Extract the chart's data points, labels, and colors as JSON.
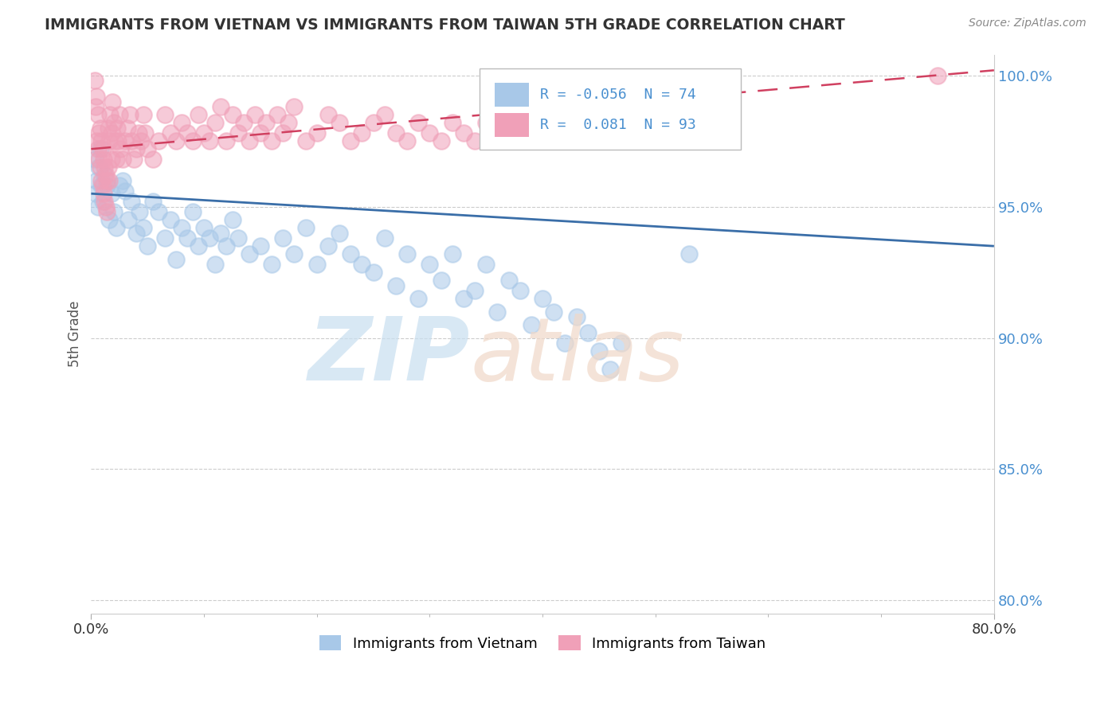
{
  "title": "IMMIGRANTS FROM VIETNAM VS IMMIGRANTS FROM TAIWAN 5TH GRADE CORRELATION CHART",
  "source": "Source: ZipAtlas.com",
  "ylabel": "5th Grade",
  "xlim": [
    0.0,
    0.8
  ],
  "ylim": [
    0.795,
    1.008
  ],
  "y_ticks": [
    0.8,
    0.85,
    0.9,
    0.95,
    1.0
  ],
  "y_tick_labels": [
    "80.0%",
    "85.0%",
    "90.0%",
    "95.0%",
    "100.0%"
  ],
  "legend_r_vietnam": "-0.056",
  "legend_n_vietnam": "74",
  "legend_r_taiwan": "0.081",
  "legend_n_taiwan": "93",
  "color_vietnam": "#a8c8e8",
  "color_taiwan": "#f0a0b8",
  "trendline_vietnam_color": "#3a6ea8",
  "trendline_taiwan_color": "#d04060",
  "vietnam_x": [
    0.003,
    0.004,
    0.005,
    0.006,
    0.007,
    0.008,
    0.009,
    0.01,
    0.012,
    0.014,
    0.016,
    0.018,
    0.02,
    0.022,
    0.025,
    0.028,
    0.03,
    0.033,
    0.036,
    0.04,
    0.043,
    0.046,
    0.05,
    0.055,
    0.06,
    0.065,
    0.07,
    0.075,
    0.08,
    0.085,
    0.09,
    0.095,
    0.1,
    0.105,
    0.11,
    0.115,
    0.12,
    0.125,
    0.13,
    0.14,
    0.15,
    0.16,
    0.17,
    0.18,
    0.19,
    0.2,
    0.21,
    0.22,
    0.23,
    0.24,
    0.25,
    0.26,
    0.27,
    0.28,
    0.29,
    0.3,
    0.31,
    0.32,
    0.33,
    0.34,
    0.35,
    0.36,
    0.37,
    0.38,
    0.39,
    0.4,
    0.41,
    0.42,
    0.43,
    0.44,
    0.45,
    0.46,
    0.47,
    0.53
  ],
  "vietnam_y": [
    0.968,
    0.955,
    0.96,
    0.95,
    0.965,
    0.972,
    0.958,
    0.952,
    0.962,
    0.958,
    0.945,
    0.955,
    0.948,
    0.942,
    0.958,
    0.96,
    0.956,
    0.945,
    0.952,
    0.94,
    0.948,
    0.942,
    0.935,
    0.952,
    0.948,
    0.938,
    0.945,
    0.93,
    0.942,
    0.938,
    0.948,
    0.935,
    0.942,
    0.938,
    0.928,
    0.94,
    0.935,
    0.945,
    0.938,
    0.932,
    0.935,
    0.928,
    0.938,
    0.932,
    0.942,
    0.928,
    0.935,
    0.94,
    0.932,
    0.928,
    0.925,
    0.938,
    0.92,
    0.932,
    0.915,
    0.928,
    0.922,
    0.932,
    0.915,
    0.918,
    0.928,
    0.91,
    0.922,
    0.918,
    0.905,
    0.915,
    0.91,
    0.898,
    0.908,
    0.902,
    0.895,
    0.888,
    0.898,
    0.932
  ],
  "taiwan_x": [
    0.003,
    0.004,
    0.005,
    0.005,
    0.006,
    0.006,
    0.007,
    0.007,
    0.008,
    0.008,
    0.009,
    0.009,
    0.01,
    0.01,
    0.011,
    0.011,
    0.012,
    0.012,
    0.013,
    0.013,
    0.014,
    0.014,
    0.015,
    0.015,
    0.016,
    0.016,
    0.017,
    0.018,
    0.018,
    0.019,
    0.02,
    0.021,
    0.022,
    0.023,
    0.024,
    0.025,
    0.026,
    0.028,
    0.03,
    0.032,
    0.034,
    0.036,
    0.038,
    0.04,
    0.042,
    0.044,
    0.046,
    0.048,
    0.05,
    0.055,
    0.06,
    0.065,
    0.07,
    0.075,
    0.08,
    0.085,
    0.09,
    0.095,
    0.1,
    0.105,
    0.11,
    0.115,
    0.12,
    0.125,
    0.13,
    0.135,
    0.14,
    0.145,
    0.15,
    0.155,
    0.16,
    0.165,
    0.17,
    0.175,
    0.18,
    0.19,
    0.2,
    0.21,
    0.22,
    0.23,
    0.24,
    0.25,
    0.26,
    0.27,
    0.28,
    0.29,
    0.3,
    0.31,
    0.32,
    0.33,
    0.34,
    0.35,
    0.75
  ],
  "taiwan_y": [
    0.998,
    0.988,
    0.992,
    0.975,
    0.985,
    0.972,
    0.978,
    0.968,
    0.98,
    0.965,
    0.975,
    0.96,
    0.972,
    0.958,
    0.968,
    0.955,
    0.965,
    0.952,
    0.962,
    0.95,
    0.96,
    0.948,
    0.98,
    0.965,
    0.975,
    0.96,
    0.985,
    0.978,
    0.968,
    0.99,
    0.982,
    0.975,
    0.968,
    0.98,
    0.975,
    0.985,
    0.972,
    0.968,
    0.975,
    0.98,
    0.985,
    0.975,
    0.968,
    0.972,
    0.978,
    0.975,
    0.985,
    0.978,
    0.972,
    0.968,
    0.975,
    0.985,
    0.978,
    0.975,
    0.982,
    0.978,
    0.975,
    0.985,
    0.978,
    0.975,
    0.982,
    0.988,
    0.975,
    0.985,
    0.978,
    0.982,
    0.975,
    0.985,
    0.978,
    0.982,
    0.975,
    0.985,
    0.978,
    0.982,
    0.988,
    0.975,
    0.978,
    0.985,
    0.982,
    0.975,
    0.978,
    0.982,
    0.985,
    0.978,
    0.975,
    0.982,
    0.978,
    0.975,
    0.982,
    0.978,
    0.975,
    0.982,
    1.0
  ],
  "trendline_vietnam_x0": 0.0,
  "trendline_vietnam_y0": 0.955,
  "trendline_vietnam_x1": 0.8,
  "trendline_vietnam_y1": 0.935,
  "trendline_taiwan_x0": 0.0,
  "trendline_taiwan_y0": 0.972,
  "trendline_taiwan_x1": 0.8,
  "trendline_taiwan_y1": 1.002
}
